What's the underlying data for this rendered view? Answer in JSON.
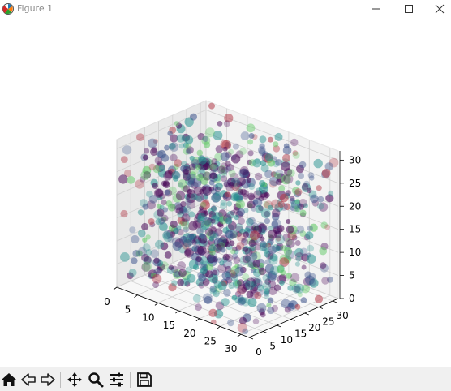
{
  "window": {
    "title": "Figure 1",
    "icons": [
      "matplotlib-icon",
      "minimize-icon",
      "maximize-icon",
      "close-icon"
    ]
  },
  "toolbar": {
    "buttons": [
      "home-icon",
      "back-arrow-icon",
      "forward-arrow-icon",
      "pan-icon",
      "zoom-icon",
      "configure-subplots-icon",
      "save-icon"
    ]
  },
  "chart_data": {
    "type": "scatter",
    "projection": "3d",
    "title": "",
    "xlabel": "",
    "ylabel": "",
    "zlabel": "",
    "x_ticks": [
      "0",
      "5",
      "10",
      "15",
      "20",
      "25",
      "30"
    ],
    "y_ticks": [
      "0",
      "5",
      "10",
      "15",
      "20",
      "25",
      "30"
    ],
    "z_ticks": [
      "0",
      "5",
      "10",
      "15",
      "20",
      "25",
      "30"
    ],
    "xlim": [
      0,
      32
    ],
    "ylim": [
      0,
      32
    ],
    "zlim": [
      0,
      32
    ],
    "grid": true,
    "legend": "none",
    "colormap": "viridis",
    "point_alpha": "low",
    "description_values": "dense 32x32x32 voxel grid of points colored by value",
    "colors": {
      "low": "#440154",
      "mid_low": "#3b528b",
      "mid": "#21908d",
      "high": "#5dc863",
      "edge": "#b23a48"
    }
  }
}
